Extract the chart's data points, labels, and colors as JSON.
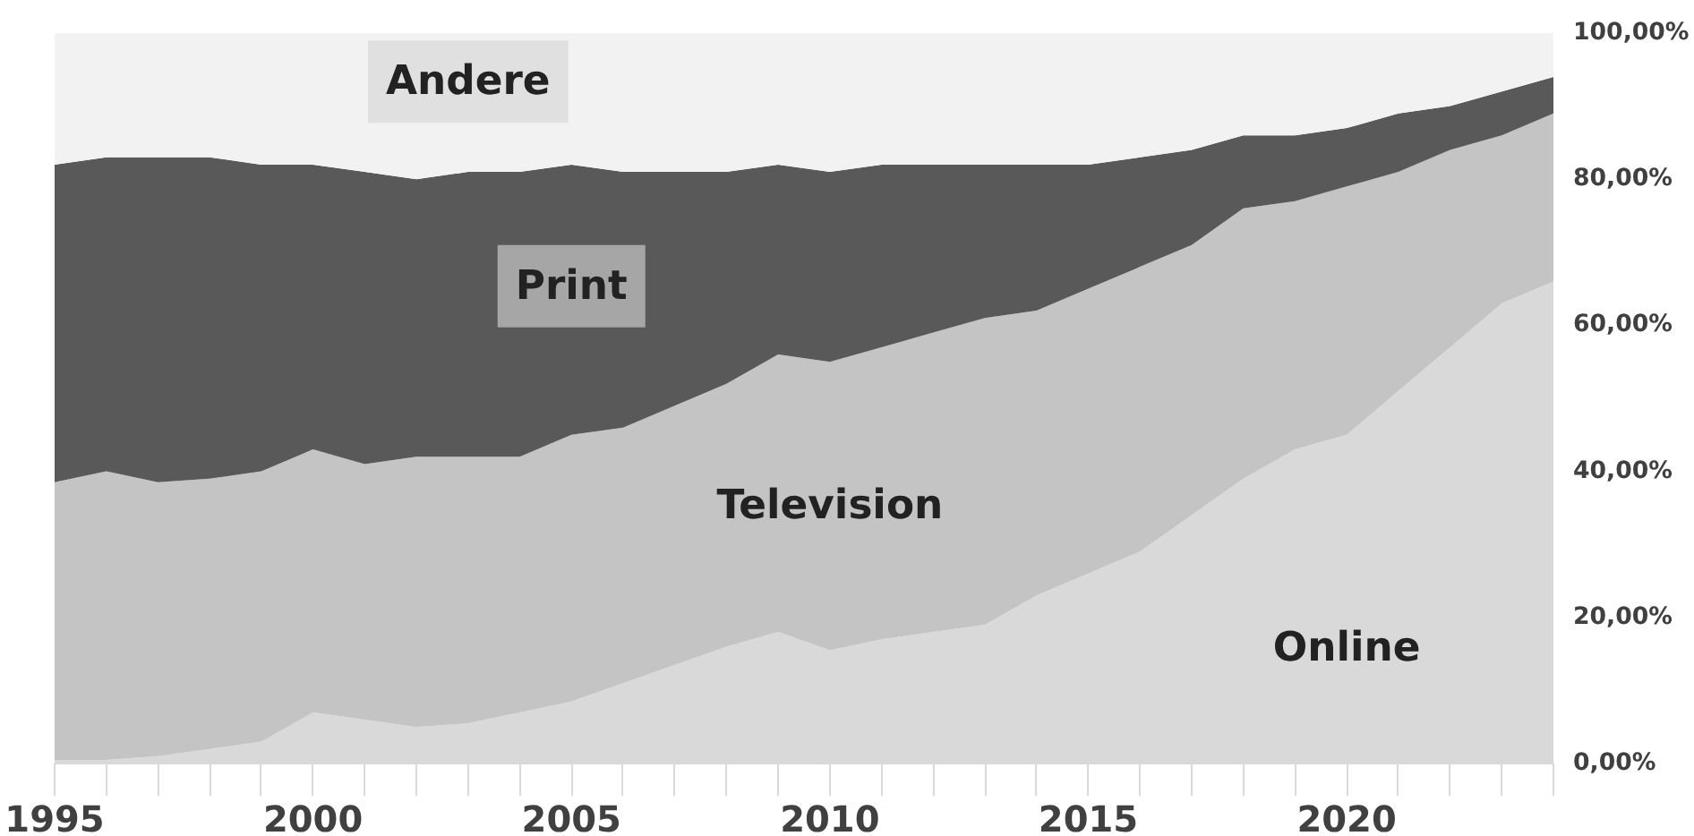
{
  "chart_data": {
    "type": "area",
    "stacked": true,
    "grid": false,
    "x": [
      1995,
      1996,
      1997,
      1998,
      1999,
      2000,
      2001,
      2002,
      2003,
      2004,
      2005,
      2006,
      2007,
      2008,
      2009,
      2010,
      2011,
      2012,
      2013,
      2014,
      2015,
      2016,
      2017,
      2018,
      2019,
      2020,
      2021,
      2022,
      2023,
      2024
    ],
    "series": [
      {
        "name": "Online",
        "color": "#d9d9d9",
        "values": [
          0.5,
          0.5,
          1,
          2,
          3,
          7,
          6,
          5,
          5.5,
          7,
          8.5,
          11,
          13.5,
          16,
          18,
          15.5,
          17,
          18,
          19,
          23,
          26,
          29,
          34,
          39,
          43,
          45,
          51,
          57,
          63,
          66
        ]
      },
      {
        "name": "Television",
        "color": "#c4c4c4",
        "values": [
          38,
          39.5,
          37.5,
          37,
          37,
          36,
          35,
          37,
          36.5,
          35,
          36.5,
          35,
          35.5,
          36,
          38,
          39.5,
          40,
          41,
          42,
          39,
          39,
          39,
          37,
          37,
          34,
          34,
          30,
          27,
          23,
          23
        ]
      },
      {
        "name": "Print",
        "color": "#595959",
        "values": [
          43.5,
          43,
          44.5,
          44,
          42,
          39,
          40,
          38,
          39,
          39,
          37,
          35,
          32,
          29,
          26,
          26,
          25,
          23,
          21,
          20,
          17,
          15,
          13,
          10,
          9,
          8,
          8,
          6,
          6,
          5
        ]
      },
      {
        "name": "Andere",
        "color": "#f2f2f2",
        "values": [
          18,
          17,
          17,
          17,
          18,
          18,
          19,
          20,
          19,
          19,
          18,
          19,
          19,
          19,
          18,
          19,
          18,
          18,
          18,
          18,
          18,
          17,
          16,
          14,
          14,
          13,
          11,
          10,
          8,
          6
        ]
      }
    ],
    "xlim": [
      1995,
      2024
    ],
    "xticks": [
      1995,
      2000,
      2005,
      2010,
      2015,
      2020
    ],
    "ylim": [
      0,
      100
    ],
    "yticks": [
      {
        "value": 0,
        "label": "0,00%"
      },
      {
        "value": 20,
        "label": "20,00%"
      },
      {
        "value": 40,
        "label": "40,00%"
      },
      {
        "value": 60,
        "label": "60,00%"
      },
      {
        "value": 80,
        "label": "80,00%"
      },
      {
        "value": 100,
        "label": "100,00%"
      }
    ]
  }
}
